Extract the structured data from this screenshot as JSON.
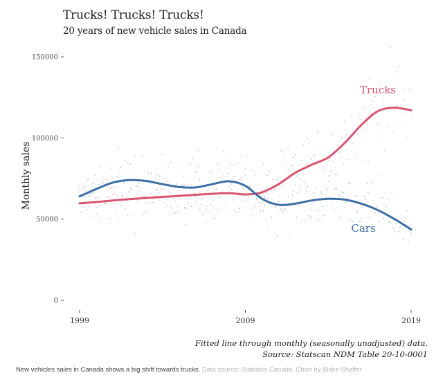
{
  "chart_data": {
    "type": "line",
    "title": "Trucks! Trucks! Trucks!",
    "subtitle": "20 years of new vehicle sales in Canada",
    "xlabel": "",
    "ylabel": "Monthly sales",
    "xlim": [
      1999,
      2019
    ],
    "ylim": [
      0,
      150000
    ],
    "x_ticks": [
      1999,
      2009,
      2019
    ],
    "x_tick_labels": [
      "1999",
      "2009",
      "2019"
    ],
    "y_ticks": [
      0,
      50000,
      100000,
      150000
    ],
    "y_tick_labels": [
      "0",
      "50000",
      "100000",
      "150000"
    ],
    "grid": false,
    "legend": "direct-labels",
    "series": [
      {
        "name": "Trucks",
        "label": "Trucks",
        "color": "#d9546e",
        "x": [
          1999,
          2000,
          2001,
          2002,
          2003,
          2004,
          2005,
          2006,
          2007,
          2008,
          2009,
          2010,
          2011,
          2012,
          2013,
          2014,
          2015,
          2016,
          2017,
          2018,
          2019
        ],
        "y": [
          59700,
          60500,
          61500,
          62300,
          63000,
          63700,
          64300,
          65000,
          65600,
          66000,
          65200,
          66500,
          71500,
          78500,
          83500,
          88000,
          97000,
          108000,
          116500,
          118600,
          117000
        ]
      },
      {
        "name": "Cars",
        "label": "Cars",
        "color": "#3a6ea5",
        "x": [
          1999,
          2000,
          2001,
          2002,
          2003,
          2004,
          2005,
          2006,
          2007,
          2008,
          2009,
          2010,
          2011,
          2012,
          2013,
          2014,
          2015,
          2016,
          2017,
          2018,
          2019
        ],
        "y": [
          64000,
          68500,
          72500,
          74000,
          73500,
          71500,
          69800,
          69500,
          71500,
          73300,
          70500,
          62500,
          58800,
          59500,
          61500,
          62500,
          62000,
          59500,
          55500,
          50000,
          43600
        ]
      }
    ],
    "scatter_note": "Faint monthly data points in series colors scattered around each fitted line",
    "caption_lines": [
      "Fitted line through monthly (seasonally unadjusted) data.",
      "Source: Statscan NDM Table 20-10-0001"
    ]
  },
  "footer": {
    "description": "New vehicles sales in Canada shows a big shift towards trucks.",
    "credit": "Data source: Statistics Canada. Chart by Blake Shaffer"
  }
}
